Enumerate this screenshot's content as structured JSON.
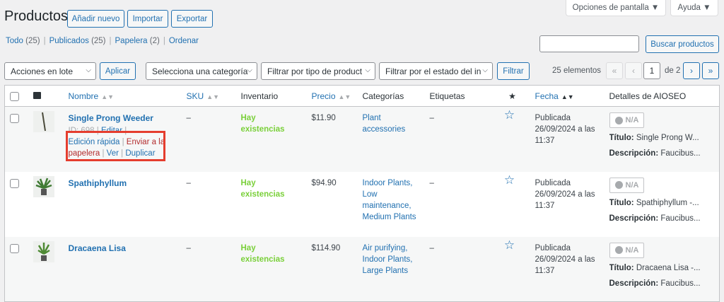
{
  "header": {
    "title": "Productos",
    "add_new": "Añadir nuevo",
    "import": "Importar",
    "export": "Exportar",
    "screen_options": "Opciones de pantalla ▼",
    "help": "Ayuda ▼"
  },
  "views": [
    {
      "label": "Todo",
      "count": "(25)"
    },
    {
      "label": "Publicados",
      "count": "(25)"
    },
    {
      "label": "Papelera",
      "count": "(2)"
    },
    {
      "label": "Ordenar",
      "count": ""
    }
  ],
  "search": {
    "value": "",
    "button": "Buscar productos"
  },
  "filters": {
    "bulk": "Acciones en lote",
    "apply": "Aplicar",
    "category": "Selecciona una categoría",
    "type": "Filtrar por tipo de product",
    "stock": "Filtrar por el estado del in",
    "filter": "Filtrar"
  },
  "pagination": {
    "items": "25 elementos",
    "first": "«",
    "prev": "‹",
    "current": "1",
    "of": "de 2",
    "next": "›",
    "last": "»"
  },
  "columns": {
    "name": "Nombre",
    "sku": "SKU",
    "stock": "Inventario",
    "price": "Precio",
    "categories": "Categorías",
    "tags": "Etiquetas",
    "featured": "★",
    "date": "Fecha",
    "seo": "Detalles de AIOSEO"
  },
  "row_actions": {
    "id": "ID: 698",
    "edit": "Editar",
    "quick_edit": "Edición rápida",
    "trash": "Enviar a la papelera",
    "view": "Ver",
    "duplicate": "Duplicar"
  },
  "products": [
    {
      "name": "Single Prong Weeder",
      "sku": "–",
      "stock": "Hay existencias",
      "price": "$11.90",
      "categories": "Plant accessories",
      "tags": "–",
      "status": "Publicada",
      "date": "26/09/2024 a las 11:37",
      "seo_score": "N/A",
      "seo_title": "Single Prong W...",
      "seo_desc": "Faucibus..."
    },
    {
      "name": "Spathiphyllum",
      "sku": "–",
      "stock": "Hay existencias",
      "price": "$94.90",
      "categories": "Indoor Plants, Low maintenance, Medium Plants",
      "tags": "–",
      "status": "Publicada",
      "date": "26/09/2024 a las 11:37",
      "seo_score": "N/A",
      "seo_title": "Spathiphyllum -...",
      "seo_desc": "Faucibus..."
    },
    {
      "name": "Dracaena Lisa",
      "sku": "–",
      "stock": "Hay existencias",
      "price": "$114.90",
      "categories": "Air purifying, Indoor Plants, Large Plants",
      "tags": "–",
      "status": "Publicada",
      "date": "26/09/2024 a las 11:37",
      "seo_score": "N/A",
      "seo_title": "Dracaena Lisa -...",
      "seo_desc": "Faucibus..."
    }
  ],
  "seo_labels": {
    "title": "Título:",
    "desc": "Descripción:"
  }
}
